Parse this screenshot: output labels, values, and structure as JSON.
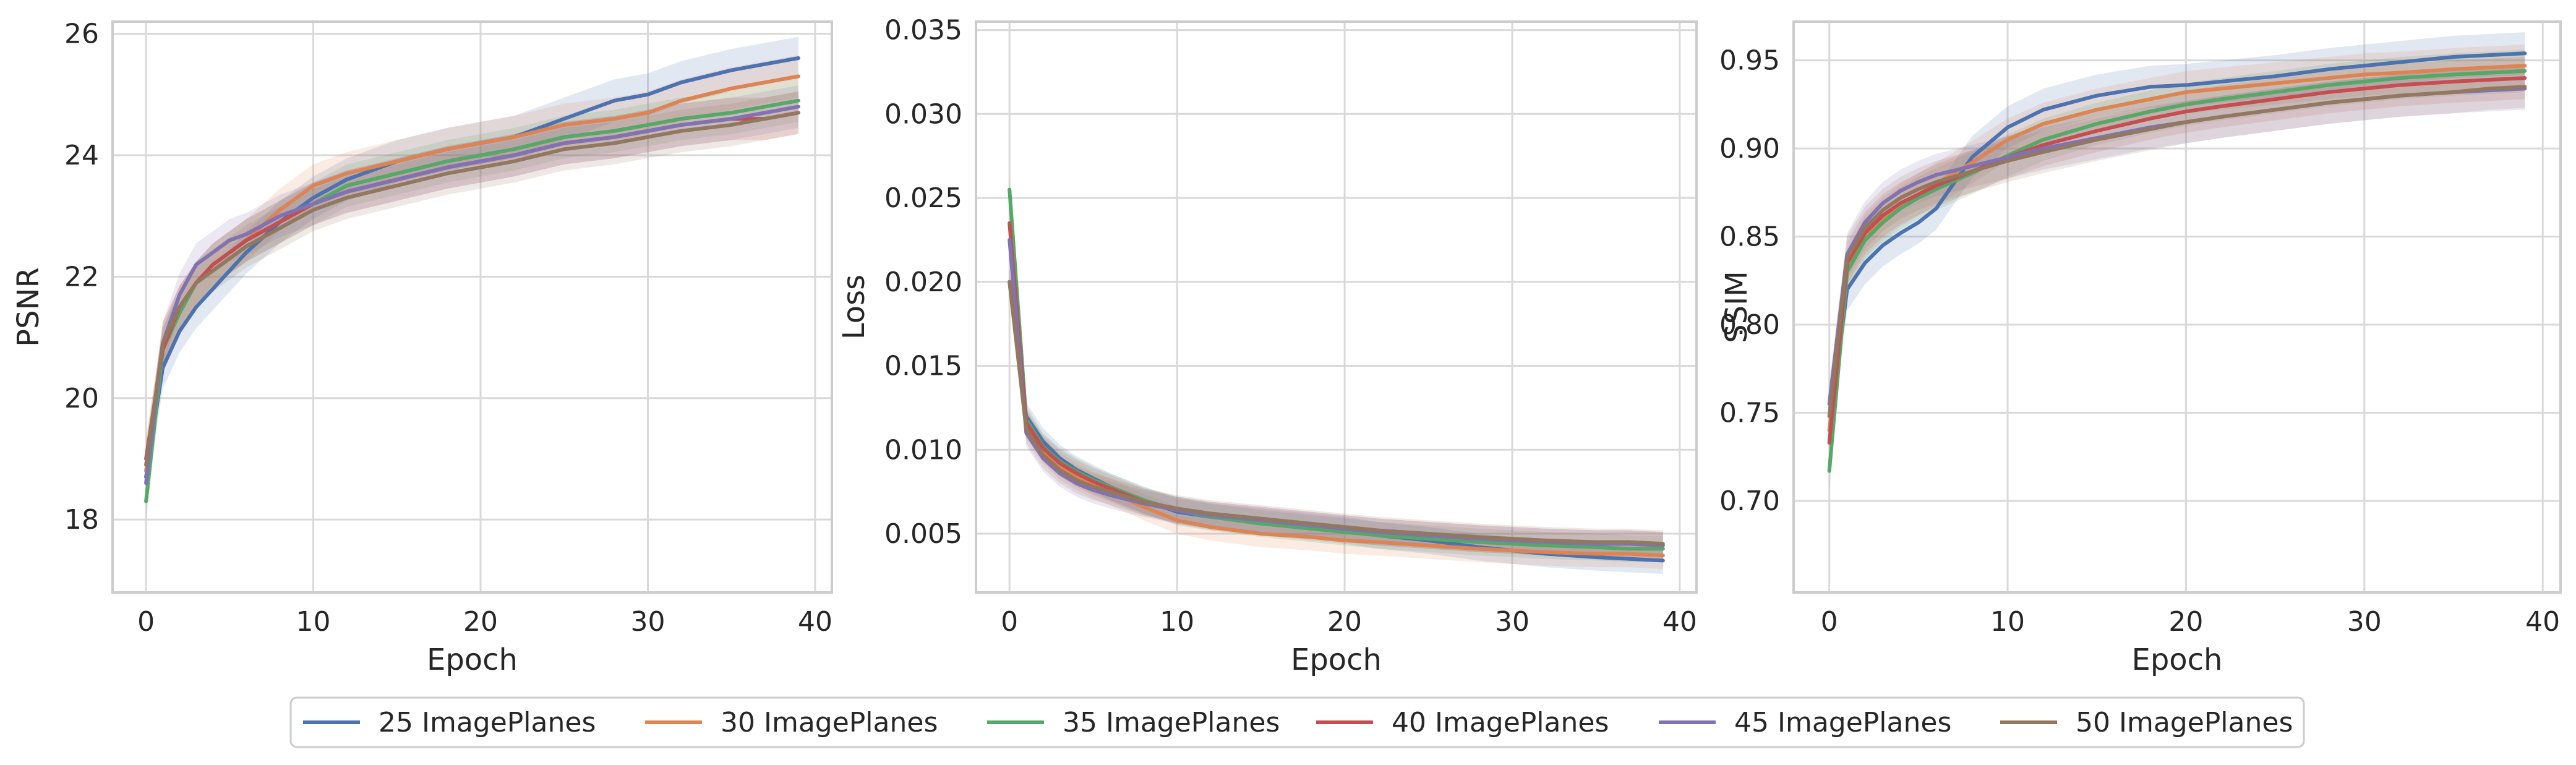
{
  "legend": {
    "placement": "bottom-center",
    "entries": [
      "25 ImagePlanes",
      "30 ImagePlanes",
      "35 ImagePlanes",
      "40 ImagePlanes",
      "45 ImagePlanes",
      "50 ImagePlanes"
    ]
  },
  "colors": {
    "series": [
      "#4c72b0",
      "#dd8452",
      "#55a868",
      "#c44e52",
      "#8172b3",
      "#937860"
    ],
    "grid": "#d9d9d9",
    "axes_frame": "#cccccc"
  },
  "chart_data": [
    {
      "type": "line",
      "xlabel": "Epoch",
      "ylabel": "PSNR",
      "xlim": [
        -2,
        41
      ],
      "ylim": [
        16.8,
        26.2
      ],
      "xticks": [
        0,
        10,
        20,
        30,
        40
      ],
      "xtick_labels": [
        "0",
        "10",
        "20",
        "30",
        "40"
      ],
      "yticks": [
        18,
        20,
        22,
        24,
        26
      ],
      "ytick_labels": [
        "18",
        "20",
        "22",
        "24",
        "26"
      ],
      "grid": true,
      "band": 0.35,
      "x": [
        0,
        1,
        2,
        3,
        4,
        5,
        6,
        8,
        10,
        12,
        15,
        18,
        20,
        22,
        25,
        28,
        30,
        32,
        35,
        37,
        39
      ],
      "series": [
        {
          "name": "25 ImagePlanes",
          "values": [
            18.7,
            20.5,
            21.1,
            21.5,
            21.8,
            22.1,
            22.4,
            22.9,
            23.3,
            23.6,
            23.9,
            24.1,
            24.2,
            24.3,
            24.6,
            24.9,
            25.0,
            25.2,
            25.4,
            25.5,
            25.6
          ]
        },
        {
          "name": "30 ImagePlanes",
          "values": [
            18.8,
            20.9,
            21.5,
            21.9,
            22.2,
            22.4,
            22.6,
            23.1,
            23.5,
            23.7,
            23.9,
            24.1,
            24.2,
            24.3,
            24.5,
            24.6,
            24.7,
            24.9,
            25.1,
            25.2,
            25.3
          ]
        },
        {
          "name": "35 ImagePlanes",
          "values": [
            18.3,
            20.8,
            21.4,
            21.9,
            22.2,
            22.4,
            22.6,
            22.9,
            23.2,
            23.5,
            23.7,
            23.9,
            24.0,
            24.1,
            24.3,
            24.4,
            24.5,
            24.6,
            24.7,
            24.8,
            24.9
          ]
        },
        {
          "name": "40 ImagePlanes",
          "values": [
            19.0,
            20.8,
            21.5,
            21.9,
            22.2,
            22.4,
            22.6,
            22.9,
            23.2,
            23.4,
            23.6,
            23.8,
            23.9,
            24.0,
            24.2,
            24.3,
            24.4,
            24.5,
            24.6,
            24.6,
            24.7
          ]
        },
        {
          "name": "45 ImagePlanes",
          "values": [
            18.6,
            20.9,
            21.7,
            22.2,
            22.4,
            22.6,
            22.7,
            23.0,
            23.2,
            23.4,
            23.6,
            23.8,
            23.9,
            24.0,
            24.2,
            24.3,
            24.4,
            24.5,
            24.6,
            24.7,
            24.8
          ]
        },
        {
          "name": "50 ImagePlanes",
          "values": [
            18.9,
            20.9,
            21.5,
            21.9,
            22.1,
            22.3,
            22.5,
            22.8,
            23.1,
            23.3,
            23.5,
            23.7,
            23.8,
            23.9,
            24.1,
            24.2,
            24.3,
            24.4,
            24.5,
            24.6,
            24.7
          ]
        }
      ]
    },
    {
      "type": "line",
      "xlabel": "Epoch",
      "ylabel": "Loss",
      "xlim": [
        -2,
        41
      ],
      "ylim": [
        0.0015,
        0.0355
      ],
      "xticks": [
        0,
        10,
        20,
        30,
        40
      ],
      "xtick_labels": [
        "0",
        "10",
        "20",
        "30",
        "40"
      ],
      "yticks": [
        0.005,
        0.01,
        0.015,
        0.02,
        0.025,
        0.03,
        0.035
      ],
      "ytick_labels": [
        "0.005",
        "0.010",
        "0.015",
        "0.020",
        "0.025",
        "0.030",
        "0.035"
      ],
      "grid": true,
      "band": 0.0008,
      "x": [
        0,
        1,
        2,
        3,
        4,
        5,
        6,
        8,
        10,
        12,
        15,
        18,
        20,
        22,
        25,
        28,
        30,
        32,
        35,
        37,
        39
      ],
      "series": [
        {
          "name": "25 ImagePlanes",
          "values": [
            0.02,
            0.012,
            0.0105,
            0.0095,
            0.0088,
            0.0083,
            0.0078,
            0.007,
            0.0063,
            0.006,
            0.0057,
            0.0054,
            0.0052,
            0.0049,
            0.0046,
            0.0042,
            0.004,
            0.0038,
            0.0036,
            0.0035,
            0.0034
          ]
        },
        {
          "name": "30 ImagePlanes",
          "values": [
            0.02,
            0.0115,
            0.01,
            0.009,
            0.0084,
            0.0079,
            0.0075,
            0.0066,
            0.0058,
            0.0054,
            0.005,
            0.0048,
            0.0046,
            0.0045,
            0.0043,
            0.0041,
            0.004,
            0.0039,
            0.0038,
            0.0038,
            0.0037
          ]
        },
        {
          "name": "35 ImagePlanes",
          "values": [
            0.0255,
            0.0118,
            0.0102,
            0.0093,
            0.0087,
            0.0082,
            0.0078,
            0.007,
            0.0064,
            0.006,
            0.0056,
            0.0053,
            0.0051,
            0.0049,
            0.0047,
            0.0045,
            0.0044,
            0.0043,
            0.0042,
            0.0041,
            0.0041
          ]
        },
        {
          "name": "40 ImagePlanes",
          "values": [
            0.0235,
            0.0116,
            0.0101,
            0.0092,
            0.0086,
            0.0081,
            0.0077,
            0.0069,
            0.0064,
            0.0061,
            0.0058,
            0.0055,
            0.0053,
            0.0051,
            0.0049,
            0.0047,
            0.0046,
            0.0045,
            0.0044,
            0.0044,
            0.0043
          ]
        },
        {
          "name": "45 ImagePlanes",
          "values": [
            0.0225,
            0.011,
            0.0095,
            0.0086,
            0.008,
            0.0076,
            0.0073,
            0.0068,
            0.0064,
            0.0061,
            0.0058,
            0.0055,
            0.0053,
            0.0051,
            0.0049,
            0.0047,
            0.0046,
            0.0045,
            0.0044,
            0.0044,
            0.0043
          ]
        },
        {
          "name": "50 ImagePlanes",
          "values": [
            0.02,
            0.0112,
            0.0097,
            0.0088,
            0.0082,
            0.0078,
            0.0075,
            0.0069,
            0.0065,
            0.0062,
            0.0059,
            0.0056,
            0.0054,
            0.0052,
            0.005,
            0.0048,
            0.0047,
            0.0046,
            0.0045,
            0.0045,
            0.0044
          ]
        }
      ]
    },
    {
      "type": "line",
      "xlabel": "Epoch",
      "ylabel": "SSIM",
      "xlim": [
        -2,
        41
      ],
      "ylim": [
        0.648,
        0.972
      ],
      "xticks": [
        0,
        10,
        20,
        30,
        40
      ],
      "xtick_labels": [
        "0",
        "10",
        "20",
        "30",
        "40"
      ],
      "yticks": [
        0.7,
        0.75,
        0.8,
        0.85,
        0.9,
        0.95
      ],
      "ytick_labels": [
        "0.70",
        "0.75",
        "0.80",
        "0.85",
        "0.90",
        "0.95"
      ],
      "grid": true,
      "band": 0.012,
      "x": [
        0,
        1,
        2,
        3,
        4,
        5,
        6,
        8,
        10,
        12,
        15,
        18,
        20,
        22,
        25,
        28,
        30,
        32,
        35,
        37,
        39
      ],
      "series": [
        {
          "name": "25 ImagePlanes",
          "values": [
            0.74,
            0.82,
            0.835,
            0.845,
            0.852,
            0.858,
            0.866,
            0.895,
            0.912,
            0.922,
            0.93,
            0.935,
            0.936,
            0.938,
            0.941,
            0.945,
            0.947,
            0.949,
            0.952,
            0.953,
            0.954
          ]
        },
        {
          "name": "30 ImagePlanes",
          "values": [
            0.74,
            0.83,
            0.85,
            0.86,
            0.868,
            0.874,
            0.88,
            0.892,
            0.905,
            0.914,
            0.922,
            0.928,
            0.932,
            0.934,
            0.937,
            0.94,
            0.942,
            0.943,
            0.945,
            0.946,
            0.947
          ]
        },
        {
          "name": "35 ImagePlanes",
          "values": [
            0.717,
            0.83,
            0.848,
            0.858,
            0.866,
            0.872,
            0.877,
            0.886,
            0.896,
            0.905,
            0.914,
            0.921,
            0.925,
            0.928,
            0.932,
            0.936,
            0.938,
            0.94,
            0.942,
            0.943,
            0.944
          ]
        },
        {
          "name": "40 ImagePlanes",
          "values": [
            0.733,
            0.835,
            0.852,
            0.862,
            0.869,
            0.874,
            0.879,
            0.887,
            0.895,
            0.902,
            0.91,
            0.917,
            0.921,
            0.924,
            0.928,
            0.932,
            0.934,
            0.936,
            0.938,
            0.939,
            0.94
          ]
        },
        {
          "name": "45 ImagePlanes",
          "values": [
            0.755,
            0.84,
            0.858,
            0.869,
            0.876,
            0.881,
            0.885,
            0.89,
            0.895,
            0.9,
            0.906,
            0.912,
            0.915,
            0.918,
            0.922,
            0.926,
            0.928,
            0.93,
            0.932,
            0.933,
            0.934
          ]
        },
        {
          "name": "50 ImagePlanes",
          "values": [
            0.748,
            0.838,
            0.855,
            0.865,
            0.872,
            0.877,
            0.881,
            0.887,
            0.893,
            0.898,
            0.905,
            0.911,
            0.915,
            0.918,
            0.922,
            0.926,
            0.928,
            0.93,
            0.932,
            0.934,
            0.935
          ]
        }
      ]
    }
  ]
}
